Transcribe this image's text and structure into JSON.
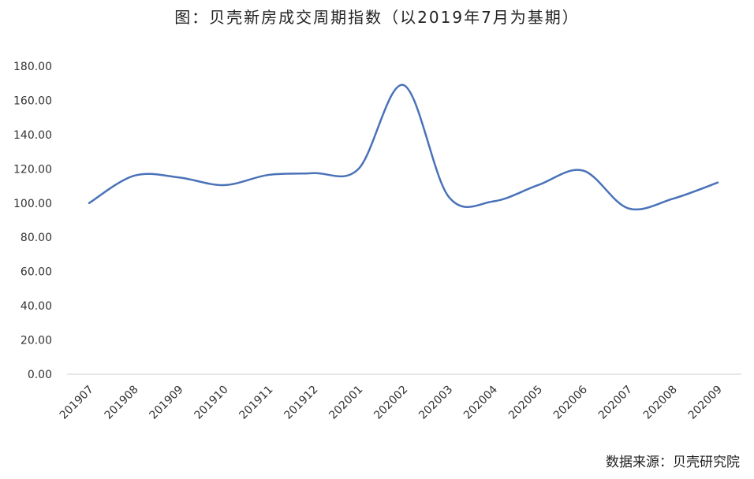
{
  "chart_data": {
    "type": "line",
    "title": "图：贝壳新房成交周期指数（以2019年7月为基期）",
    "source": "数据来源：贝壳研究院",
    "categories": [
      "201907",
      "201908",
      "201909",
      "201910",
      "201911",
      "201912",
      "202001",
      "202002",
      "202003",
      "202004",
      "202005",
      "202006",
      "202007",
      "202008",
      "202009"
    ],
    "series": [
      {
        "values": [
          100,
          116,
          115,
          110.5,
          116.5,
          117.5,
          120,
          169,
          104,
          101,
          110.5,
          119,
          97,
          102.5,
          112
        ],
        "color": "#4a72b8"
      }
    ],
    "ylim": [
      0,
      180
    ],
    "yticks": [
      "0.00",
      "20.00",
      "40.00",
      "60.00",
      "80.00",
      "100.00",
      "120.00",
      "140.00",
      "160.00",
      "180.00"
    ],
    "grid": false
  }
}
